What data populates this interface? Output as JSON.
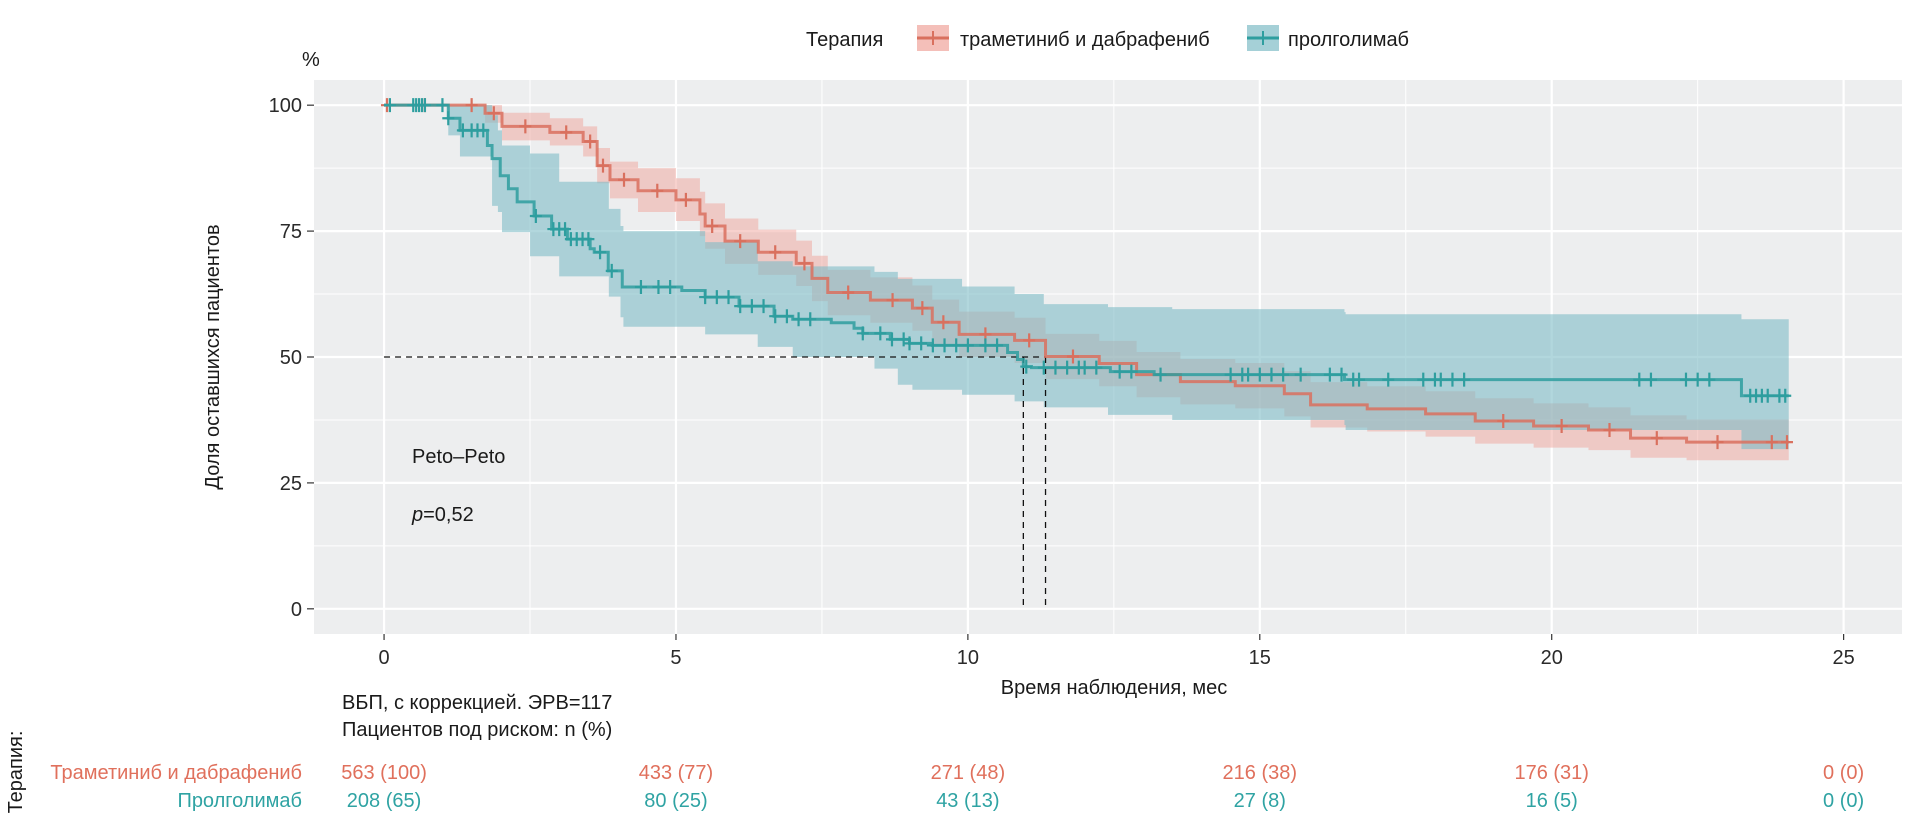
{
  "chart_data": {
    "type": "line",
    "subtype": "kaplan-meier step curves with confidence bands",
    "xlabel": "Время наблюдения, мес",
    "ylabel": "Доля оставшихся пациентов",
    "yunit": "%",
    "xlim": [
      -1.2,
      26
    ],
    "ylim": [
      -5,
      105
    ],
    "xticks": [
      0,
      5,
      10,
      15,
      20,
      25
    ],
    "yticks": [
      0,
      25,
      50,
      75,
      100
    ],
    "grid": true,
    "legend": {
      "title": "Терапия",
      "placement": "top"
    },
    "annotations": {
      "test": "Peto–Peto",
      "p_label": "p",
      "p_value": "=0,52"
    },
    "median_line": {
      "y": 50,
      "x": [
        10.95,
        11.33
      ]
    },
    "series": [
      {
        "name": "траметиниб и дабрафениб",
        "color": "#D9705E",
        "fill": "#F0A49B",
        "steps": [
          [
            0,
            100
          ],
          [
            1.73,
            98.4
          ],
          [
            2.02,
            95.8
          ],
          [
            2.84,
            94.6
          ],
          [
            3.41,
            92.8
          ],
          [
            3.65,
            88
          ],
          [
            3.87,
            85.2
          ],
          [
            4.35,
            83
          ],
          [
            5.0,
            81.2
          ],
          [
            5.41,
            78.4
          ],
          [
            5.5,
            76
          ],
          [
            5.84,
            73
          ],
          [
            6.41,
            70.8
          ],
          [
            7.06,
            68.6
          ],
          [
            7.33,
            65.6
          ],
          [
            7.6,
            62.8
          ],
          [
            8.33,
            61.3
          ],
          [
            9.05,
            59.7
          ],
          [
            9.39,
            56.9
          ],
          [
            9.85,
            54.5
          ],
          [
            10.8,
            53.3
          ],
          [
            11.33,
            50.1
          ],
          [
            12.25,
            48.7
          ],
          [
            12.89,
            46.5
          ],
          [
            13.64,
            45.1
          ],
          [
            14.58,
            44.3
          ],
          [
            15.42,
            42.7
          ],
          [
            15.87,
            40.5
          ],
          [
            16.84,
            39.7
          ],
          [
            17.84,
            38.7
          ],
          [
            18.69,
            37.3
          ],
          [
            19.69,
            36.3
          ],
          [
            20.63,
            35.5
          ],
          [
            21.35,
            33.9
          ],
          [
            22.31,
            33.1
          ],
          [
            24.06,
            33.1
          ]
        ],
        "ci": [
          [
            0,
            100,
            100
          ],
          [
            1.73,
            100,
            96.5
          ],
          [
            2.02,
            98.5,
            93
          ],
          [
            2.84,
            97.4,
            92
          ],
          [
            3.41,
            95.8,
            89.8
          ],
          [
            3.65,
            91.5,
            84.5
          ],
          [
            3.87,
            88.8,
            81.5
          ],
          [
            4.35,
            87.5,
            78.8
          ],
          [
            5.0,
            85.5,
            77
          ],
          [
            5.41,
            82.8,
            74
          ],
          [
            5.5,
            80.5,
            71.5
          ],
          [
            5.84,
            77.5,
            68.5
          ],
          [
            6.41,
            75.3,
            66.3
          ],
          [
            7.06,
            73.1,
            64.1
          ],
          [
            7.33,
            70.1,
            61.1
          ],
          [
            7.6,
            67.3,
            58.3
          ],
          [
            8.33,
            65.8,
            56.8
          ],
          [
            9.05,
            64.2,
            55.2
          ],
          [
            9.39,
            61.4,
            52.4
          ],
          [
            9.85,
            59,
            50
          ],
          [
            10.8,
            57.8,
            48.8
          ],
          [
            11.33,
            54.6,
            45.6
          ],
          [
            12.25,
            53.2,
            44.2
          ],
          [
            12.89,
            51,
            42
          ],
          [
            13.64,
            49.6,
            40.6
          ],
          [
            14.58,
            48.8,
            39.8
          ],
          [
            15.42,
            47.2,
            38.2
          ],
          [
            15.87,
            45,
            36
          ],
          [
            16.84,
            44.2,
            35.2
          ],
          [
            17.84,
            43.2,
            34.2
          ],
          [
            18.69,
            41.8,
            32.8
          ],
          [
            19.69,
            40.8,
            32
          ],
          [
            20.63,
            40,
            31.5
          ],
          [
            21.35,
            38.4,
            30
          ],
          [
            22.31,
            37.6,
            29.5
          ],
          [
            24.06,
            37.6,
            29.2
          ]
        ],
        "censored": [
          0.05,
          0.7,
          1.5,
          1.88,
          2.42,
          3.12,
          3.53,
          3.75,
          4.11,
          4.68,
          5.17,
          5.62,
          6.1,
          6.7,
          7.2,
          7.95,
          8.71,
          9.22,
          9.58,
          10.3,
          11.05,
          11.8,
          19.17,
          20.17,
          20.99,
          21.8,
          22.84,
          23.77,
          24.03
        ]
      },
      {
        "name": "пролголимаб",
        "color": "#2E9E9F",
        "fill": "#7FBCC6",
        "steps": [
          [
            0,
            100
          ],
          [
            1.1,
            97.4
          ],
          [
            1.3,
            95
          ],
          [
            1.77,
            92
          ],
          [
            1.85,
            89.4
          ],
          [
            1.99,
            86
          ],
          [
            2.13,
            83.4
          ],
          [
            2.28,
            80.8
          ],
          [
            2.57,
            78
          ],
          [
            2.87,
            75.4
          ],
          [
            3.14,
            73.4
          ],
          [
            3.53,
            71.5
          ],
          [
            3.6,
            70.8
          ],
          [
            3.84,
            67.1
          ],
          [
            4.08,
            63.9
          ],
          [
            5.1,
            63.2
          ],
          [
            5.5,
            61.9
          ],
          [
            6.08,
            60.1
          ],
          [
            6.68,
            58.1
          ],
          [
            7.0,
            57.5
          ],
          [
            7.66,
            56.8
          ],
          [
            8.05,
            55.7
          ],
          [
            8.2,
            54.7
          ],
          [
            8.67,
            53.5
          ],
          [
            9.0,
            52.7
          ],
          [
            9.39,
            52.3
          ],
          [
            10.68,
            50.9
          ],
          [
            10.85,
            49.5
          ],
          [
            10.95,
            48.1
          ],
          [
            11.09,
            47.9
          ],
          [
            12.44,
            47.1
          ],
          [
            13.19,
            46.5
          ],
          [
            16.45,
            45.5
          ],
          [
            23.25,
            42.3
          ],
          [
            24.06,
            42.3
          ]
        ],
        "ci": [
          [
            0,
            100,
            100
          ],
          [
            1.1,
            100,
            94
          ],
          [
            1.3,
            100,
            89.8
          ],
          [
            1.85,
            98,
            80
          ],
          [
            1.95,
            95,
            78.8
          ],
          [
            2.02,
            92,
            74.8
          ],
          [
            2.5,
            90.4,
            70
          ],
          [
            3.0,
            84.8,
            66
          ],
          [
            3.85,
            79.4,
            62
          ],
          [
            4.05,
            76,
            57.9
          ],
          [
            4.1,
            75,
            56
          ],
          [
            5.5,
            72.8,
            54.5
          ],
          [
            6.4,
            69,
            52
          ],
          [
            7.0,
            68,
            50
          ],
          [
            8.4,
            66.9,
            47.7
          ],
          [
            8.8,
            65.5,
            44.5
          ],
          [
            9.05,
            65.5,
            43.5
          ],
          [
            9.9,
            64,
            42.5
          ],
          [
            10.8,
            62.5,
            41.2
          ],
          [
            11.3,
            60.5,
            40
          ],
          [
            12.4,
            59.9,
            38.5
          ],
          [
            13.5,
            59.5,
            37.5
          ],
          [
            16.45,
            58.9,
            36.5
          ],
          [
            16.47,
            58.5,
            35.5
          ],
          [
            23.25,
            57.5,
            31.7
          ],
          [
            24.06,
            57.5,
            31.7
          ]
        ],
        "censored": [
          0.1,
          0.5,
          0.55,
          0.6,
          0.65,
          0.7,
          1.0,
          1.1,
          1.35,
          1.5,
          1.6,
          1.7,
          2.6,
          2.9,
          3.0,
          3.1,
          3.2,
          3.3,
          3.4,
          3.5,
          3.7,
          3.9,
          4.4,
          4.7,
          4.9,
          5.5,
          5.7,
          5.9,
          6.1,
          6.3,
          6.5,
          6.7,
          6.9,
          7.1,
          7.3,
          8.2,
          8.5,
          8.7,
          8.9,
          9.0,
          9.2,
          9.4,
          9.6,
          9.8,
          10.0,
          10.3,
          10.5,
          11.0,
          11.3,
          11.5,
          11.7,
          11.9,
          12.0,
          12.2,
          12.6,
          12.8,
          13.3,
          14.5,
          14.7,
          14.8,
          15.0,
          15.2,
          15.4,
          15.7,
          16.2,
          16.4,
          16.6,
          16.7,
          17.2,
          17.8,
          18.0,
          18.1,
          18.3,
          18.5,
          21.5,
          21.7,
          22.3,
          22.5,
          22.7,
          23.4,
          23.5,
          23.6,
          23.7,
          23.9,
          24.0
        ]
      }
    ],
    "risk_table": {
      "title_line1": "ВБП, с коррекцией. ЭРВ=117",
      "title_line2": "Пациентов под риском: n (%)",
      "strata_title": "Терапия:",
      "times": [
        0,
        5,
        10,
        15,
        20,
        25
      ],
      "rows": [
        {
          "label": "Траметиниб и дабрафениб",
          "color": "#E0705C",
          "values": [
            "563 (100)",
            "433 (77)",
            "271 (48)",
            "216 (38)",
            "176 (31)",
            "0 (0)"
          ]
        },
        {
          "label": "Пролголимаб",
          "color": "#2FA3A3",
          "values": [
            "208 (65)",
            "80 (25)",
            "43 (13)",
            "27 (8)",
            "16 (5)",
            "0 (0)"
          ]
        }
      ]
    }
  }
}
